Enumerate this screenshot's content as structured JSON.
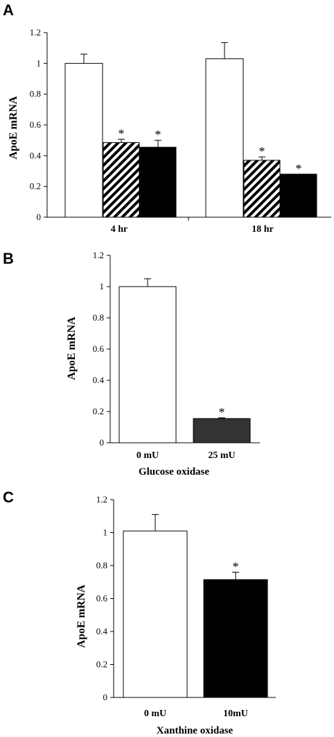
{
  "chart_data": [
    {
      "panel": "A",
      "type": "bar",
      "ylabel": "ApoE mRNA",
      "xlabel": "",
      "ylim": [
        0,
        1.2
      ],
      "yticks": [
        "0",
        "0.2",
        "0.4",
        "0.6",
        "0.8",
        "1",
        "1.2"
      ],
      "categories": [
        "4 hr",
        "18 hr"
      ],
      "series": [
        {
          "fill": "white",
          "values": [
            1.0,
            1.03
          ],
          "errors": [
            0.06,
            0.105
          ],
          "significant": [
            false,
            false
          ]
        },
        {
          "fill": "hatched",
          "values": [
            0.485,
            0.37
          ],
          "errors": [
            0.022,
            0.022
          ],
          "significant": [
            true,
            true
          ]
        },
        {
          "fill": "black",
          "values": [
            0.455,
            0.28
          ],
          "errors": [
            0.045,
            0.0
          ],
          "significant": [
            true,
            true
          ]
        }
      ],
      "significance_mark": "*"
    },
    {
      "panel": "B",
      "type": "bar",
      "ylabel": "ApoE mRNA",
      "xlabel": "Glucose oxidase",
      "ylim": [
        0,
        1.2
      ],
      "yticks": [
        "0",
        "0.2",
        "0.4",
        "0.6",
        "0.8",
        "1",
        "1.2"
      ],
      "categories": [
        "0 mU",
        "25 mU"
      ],
      "series": [
        {
          "values": [
            1.0,
            0.155
          ],
          "errors": [
            0.05,
            0.005
          ],
          "fills": [
            "#ffffff",
            "#333333"
          ],
          "significant": [
            false,
            true
          ]
        }
      ],
      "significance_mark": "*"
    },
    {
      "panel": "C",
      "type": "bar",
      "ylabel": "ApoE mRNA",
      "xlabel": "Xanthine oxidase",
      "ylim": [
        0,
        1.2
      ],
      "yticks": [
        "0",
        "0.2",
        "0.4",
        "0.6",
        "0.8",
        "1",
        "1.2"
      ],
      "categories": [
        "0 mU",
        "10mU"
      ],
      "series": [
        {
          "values": [
            1.01,
            0.715
          ],
          "errors": [
            0.1,
            0.045
          ],
          "fills": [
            "#ffffff",
            "#000000"
          ],
          "significant": [
            false,
            true
          ]
        }
      ],
      "significance_mark": "*"
    }
  ]
}
